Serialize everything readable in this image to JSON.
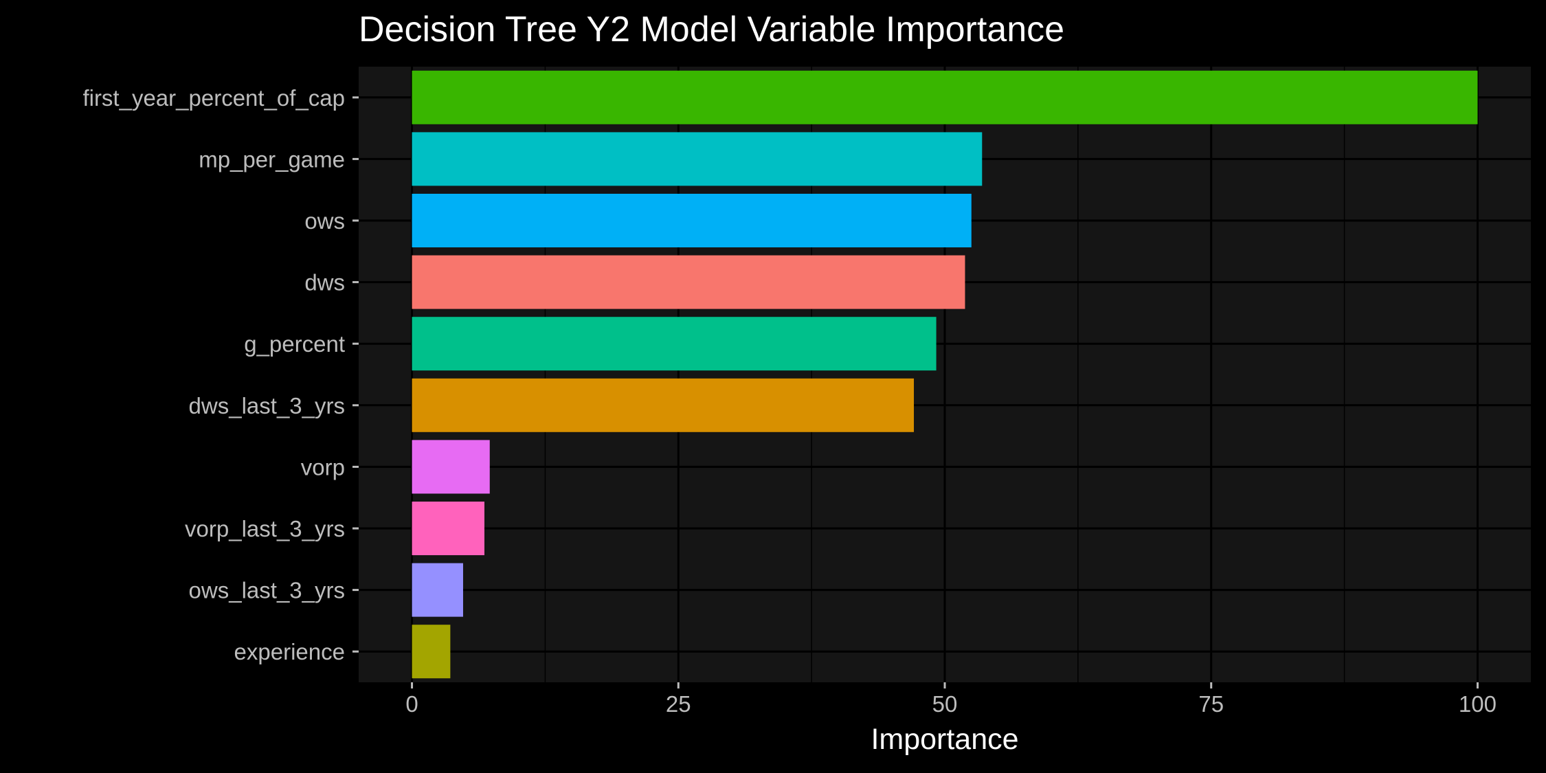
{
  "chart_data": {
    "type": "bar",
    "orientation": "horizontal",
    "title": "Decision Tree Y2 Model Variable Importance",
    "xlabel": "Importance",
    "ylabel": "",
    "xlim": [
      -5,
      105
    ],
    "x_ticks": [
      0,
      25,
      50,
      75,
      100
    ],
    "grid": true,
    "legend": "none",
    "background": "#151515",
    "page_background": "#000000",
    "bars": [
      {
        "category": "first_year_percent_of_cap",
        "value": 100,
        "color": "#39b600"
      },
      {
        "category": "mp_per_game",
        "value": 53.5,
        "color": "#00bfc4"
      },
      {
        "category": "ows",
        "value": 52.5,
        "color": "#00b0f6"
      },
      {
        "category": "dws",
        "value": 51.9,
        "color": "#f8766d"
      },
      {
        "category": "g_percent",
        "value": 49.2,
        "color": "#00c08b"
      },
      {
        "category": "dws_last_3_yrs",
        "value": 47.1,
        "color": "#d89000"
      },
      {
        "category": "vorp",
        "value": 7.3,
        "color": "#e76bf3"
      },
      {
        "category": "vorp_last_3_yrs",
        "value": 6.8,
        "color": "#ff62bc"
      },
      {
        "category": "ows_last_3_yrs",
        "value": 4.8,
        "color": "#9590ff"
      },
      {
        "category": "experience",
        "value": 3.6,
        "color": "#a3a500"
      }
    ]
  }
}
